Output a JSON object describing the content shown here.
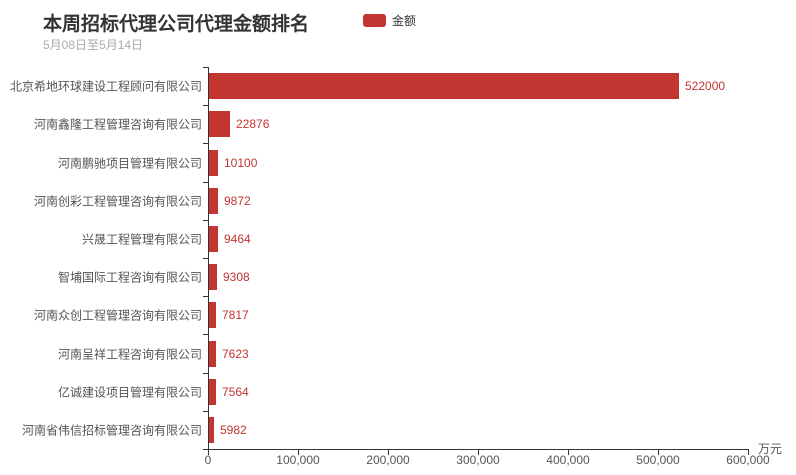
{
  "header": {
    "title": "本周招标代理公司代理金额排名",
    "subtitle": "5月08日至5月14日"
  },
  "legend": {
    "label": "金额",
    "color": "#c23531"
  },
  "chart_data": {
    "type": "bar",
    "orientation": "horizontal",
    "title": "本周招标代理公司代理金额排名",
    "subtitle": "5月08日至5月14日",
    "series_name": "金额",
    "categories": [
      "北京希地环球建设工程顾问有限公司",
      "河南鑫隆工程管理咨询有限公司",
      "河南鹏驰项目管理有限公司",
      "河南创彩工程管理咨询有限公司",
      "兴晟工程管理有限公司",
      "智埔国际工程咨询有限公司",
      "河南众创工程管理咨询有限公司",
      "河南呈祥工程咨询有限公司",
      "亿诚建设项目管理有限公司",
      "河南省伟信招标管理咨询有限公司"
    ],
    "values": [
      522000,
      22876,
      10100,
      9872,
      9464,
      9308,
      7817,
      7623,
      7564,
      5982
    ],
    "value_labels": [
      "522000",
      "22876",
      "10100",
      "9872",
      "9464",
      "9308",
      "7817",
      "7623",
      "7564",
      "5982"
    ],
    "xlim": [
      0,
      600000
    ],
    "xticks": [
      0,
      100000,
      200000,
      300000,
      400000,
      500000,
      600000
    ],
    "xtick_labels": [
      "0",
      "100,000",
      "200,000",
      "300,000",
      "400,000",
      "500,000",
      "600,000"
    ],
    "x_unit": "万元",
    "bar_color": "#c23531",
    "value_label_color": "#c23531",
    "grid": false,
    "legend_position": "top"
  }
}
